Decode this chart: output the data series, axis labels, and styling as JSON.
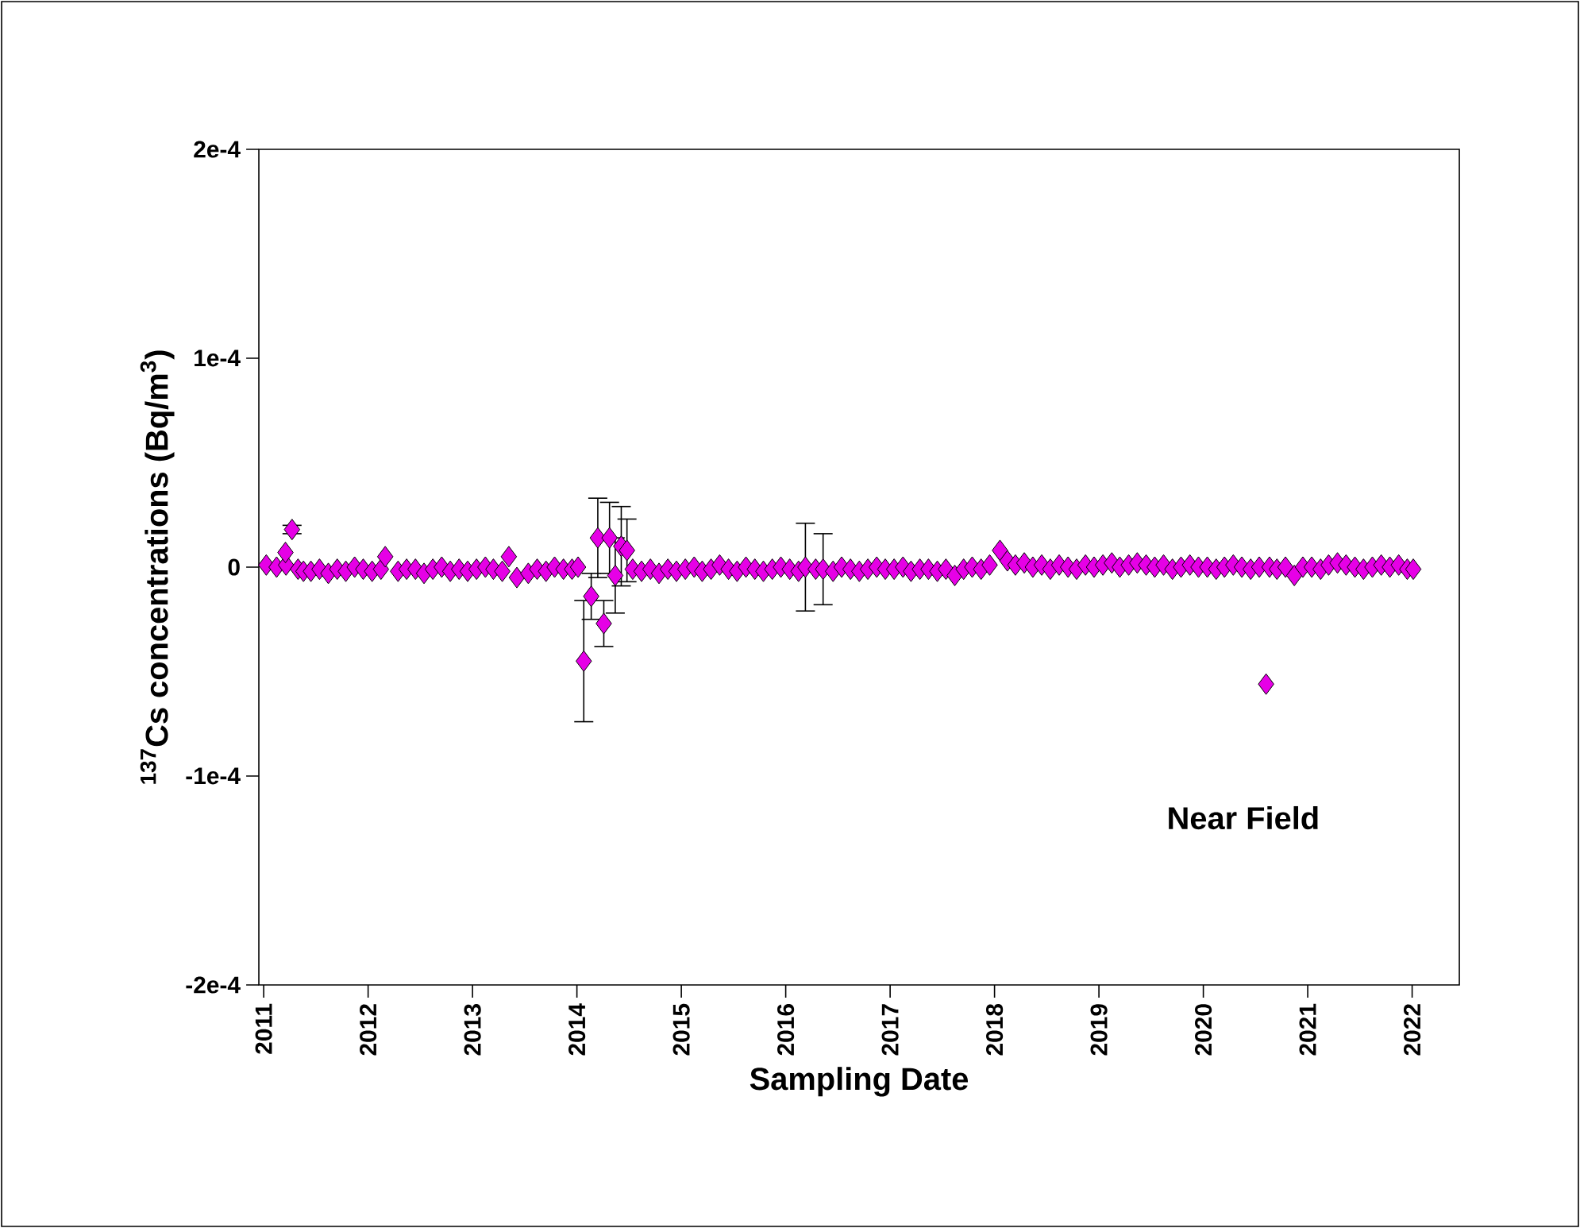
{
  "chart_data": {
    "type": "scatter",
    "xlabel": "Sampling Date",
    "ylabel": "$^{137}$Cs concentrations (Bq/m$^{3}$)",
    "annotations": [
      "Near Field"
    ],
    "xlim": [
      "2010-12-15",
      "2022-06-15"
    ],
    "xticks": [
      "2011",
      "2012",
      "2013",
      "2014",
      "2015",
      "2016",
      "2017",
      "2018",
      "2019",
      "2020",
      "2021",
      "2022"
    ],
    "ylim": [
      -0.0002,
      0.0002
    ],
    "yticks": [
      {
        "value": -0.0002,
        "label": "-2e-4"
      },
      {
        "value": -0.0001,
        "label": "-1e-4"
      },
      0,
      {
        "value": 0.0001,
        "label": "1e-4"
      },
      {
        "value": 0.0002,
        "label": "2e-4"
      }
    ],
    "marker": "diamond",
    "color": "#e600e6",
    "x": [
      "2011-01-10",
      "2011-02-15",
      "2011-03-20",
      "2011-03-18",
      "2011-04-10",
      "2011-05-01",
      "2011-05-20",
      "2011-06-15",
      "2011-07-15",
      "2011-08-15",
      "2011-09-15",
      "2011-10-15",
      "2011-11-15",
      "2011-12-15",
      "2012-01-15",
      "2012-02-15",
      "2012-03-01",
      "2012-04-15",
      "2012-05-15",
      "2012-06-15",
      "2012-07-15",
      "2012-08-15",
      "2012-09-15",
      "2012-10-15",
      "2012-11-15",
      "2012-12-15",
      "2013-01-15",
      "2013-02-15",
      "2013-03-15",
      "2013-04-15",
      "2013-05-08",
      "2013-06-05",
      "2013-07-15",
      "2013-08-15",
      "2013-09-15",
      "2013-10-15",
      "2013-11-15",
      "2013-12-15",
      "2014-01-05",
      "2014-01-25",
      "2014-02-20",
      "2014-03-15",
      "2014-04-05",
      "2014-04-25",
      "2014-05-15",
      "2014-06-05",
      "2014-06-25",
      "2014-07-15",
      "2014-08-15",
      "2014-09-15",
      "2014-10-15",
      "2014-11-15",
      "2014-12-15",
      "2015-01-15",
      "2015-02-15",
      "2015-03-15",
      "2015-04-15",
      "2015-05-15",
      "2015-06-15",
      "2015-07-15",
      "2015-08-15",
      "2015-09-15",
      "2015-10-15",
      "2015-11-15",
      "2015-12-15",
      "2016-01-15",
      "2016-02-15",
      "2016-03-10",
      "2016-04-15",
      "2016-05-11",
      "2016-06-15",
      "2016-07-15",
      "2016-08-15",
      "2016-09-15",
      "2016-10-15",
      "2016-11-15",
      "2016-12-15",
      "2017-01-15",
      "2017-02-15",
      "2017-03-15",
      "2017-04-15",
      "2017-05-15",
      "2017-06-15",
      "2017-07-15",
      "2017-08-15",
      "2017-09-15",
      "2017-10-15",
      "2017-11-15",
      "2017-12-15",
      "2018-01-20",
      "2018-02-15",
      "2018-03-15",
      "2018-04-15",
      "2018-05-15",
      "2018-06-15",
      "2018-07-15",
      "2018-08-15",
      "2018-09-15",
      "2018-10-15",
      "2018-11-15",
      "2018-12-15",
      "2019-01-15",
      "2019-02-15",
      "2019-03-15",
      "2019-04-15",
      "2019-05-15",
      "2019-06-15",
      "2019-07-15",
      "2019-08-15",
      "2019-09-15",
      "2019-10-15",
      "2019-11-15",
      "2019-12-15",
      "2020-01-15",
      "2020-02-15",
      "2020-03-15",
      "2020-04-15",
      "2020-05-15",
      "2020-06-15",
      "2020-07-15",
      "2020-08-08",
      "2020-08-20",
      "2020-09-15",
      "2020-10-15",
      "2020-11-15",
      "2020-12-15",
      "2021-01-15",
      "2021-02-15",
      "2021-03-15",
      "2021-04-15",
      "2021-05-15",
      "2021-06-15",
      "2021-07-15",
      "2021-08-15",
      "2021-09-15",
      "2021-10-15",
      "2021-11-15",
      "2021-12-15",
      "2022-01-05"
    ],
    "values": [
      1e-06,
      0,
      1e-06,
      7e-06,
      1.8e-05,
      -1e-06,
      -2e-06,
      -2e-06,
      -1e-06,
      -3e-06,
      -1e-06,
      -2e-06,
      0,
      -1e-06,
      -2e-06,
      -1e-06,
      5e-06,
      -2e-06,
      -1e-06,
      -1e-06,
      -3e-06,
      -1e-06,
      0,
      -2e-06,
      -1e-06,
      -2e-06,
      -1e-06,
      0,
      -1e-06,
      -2e-06,
      5e-06,
      -5e-06,
      -3e-06,
      -1e-06,
      -2e-06,
      0,
      -1e-06,
      -1e-06,
      0,
      -4.5e-05,
      -1.4e-05,
      1.4e-05,
      -2.7e-05,
      1.4e-05,
      -4e-06,
      1e-05,
      8e-06,
      -1e-06,
      -2e-06,
      -1e-06,
      -3e-06,
      -1e-06,
      -2e-06,
      -1e-06,
      0,
      -2e-06,
      -1e-06,
      1e-06,
      -1e-06,
      -2e-06,
      0,
      -1e-06,
      -2e-06,
      -1e-06,
      0,
      -1e-06,
      -2e-06,
      0,
      -1e-06,
      -1e-06,
      -2e-06,
      0,
      -1e-06,
      -2e-06,
      -1e-06,
      0,
      -1e-06,
      -1e-06,
      0,
      -2e-06,
      -1e-06,
      -1e-06,
      -2e-06,
      -1e-06,
      -4e-06,
      -1e-06,
      0,
      -1e-06,
      1e-06,
      8e-06,
      3e-06,
      1e-06,
      2e-06,
      0,
      1e-06,
      -1e-06,
      1e-06,
      0,
      -1e-06,
      1e-06,
      0,
      1e-06,
      2e-06,
      0,
      1e-06,
      2e-06,
      1e-06,
      0,
      1e-06,
      -1e-06,
      0,
      1e-06,
      0,
      0,
      -1e-06,
      0,
      1e-06,
      0,
      -1e-06,
      0,
      -5.6e-05,
      0,
      -1e-06,
      0,
      -4e-06,
      0,
      0,
      -1e-06,
      1e-06,
      2e-06,
      1e-06,
      0,
      -1e-06,
      0,
      1e-06,
      0,
      1e-06,
      -1e-06,
      -1e-06
    ],
    "errors": [
      null,
      null,
      null,
      null,
      2e-06,
      null,
      null,
      null,
      null,
      null,
      null,
      null,
      null,
      null,
      null,
      null,
      null,
      null,
      null,
      null,
      null,
      null,
      null,
      null,
      null,
      null,
      null,
      null,
      null,
      null,
      null,
      null,
      null,
      null,
      null,
      null,
      null,
      null,
      null,
      2.9e-05,
      1.1e-05,
      1.9e-05,
      1.1e-05,
      1.7e-05,
      1.8e-05,
      1.9e-05,
      1.5e-05,
      null,
      null,
      null,
      null,
      null,
      null,
      null,
      null,
      null,
      null,
      null,
      null,
      null,
      null,
      null,
      null,
      null,
      null,
      null,
      null,
      2.1e-05,
      null,
      1.7e-05,
      null,
      null,
      null,
      null,
      null,
      null,
      null,
      null,
      null,
      null,
      null,
      null,
      null,
      null,
      null,
      null,
      null,
      null,
      null,
      null,
      null,
      null,
      null,
      null,
      null,
      null,
      null,
      null,
      null,
      null,
      null,
      null,
      null,
      null,
      null,
      null,
      null,
      null,
      null,
      null,
      null,
      null,
      null,
      null,
      null,
      null,
      null,
      null,
      null,
      null,
      null,
      null,
      null,
      null,
      null,
      null,
      null,
      null,
      null,
      null,
      null,
      null,
      null,
      null,
      null,
      null,
      null,
      null,
      null
    ]
  }
}
